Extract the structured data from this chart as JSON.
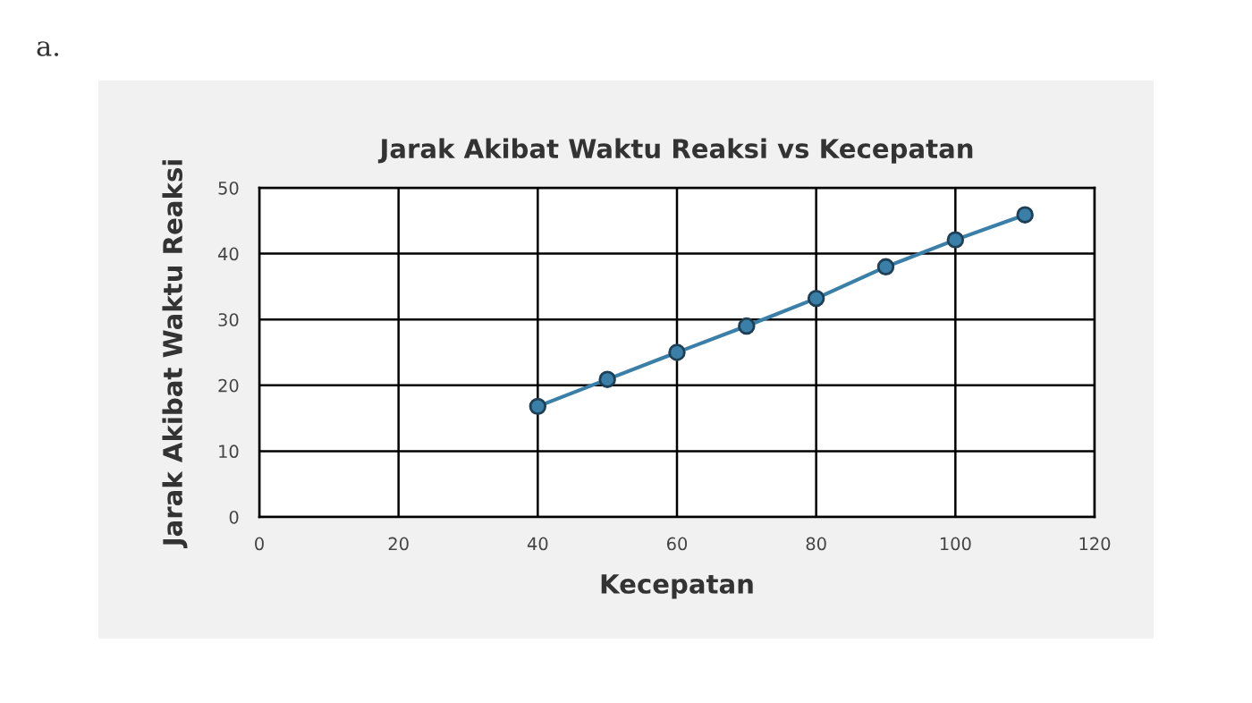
{
  "chart_data": {
    "type": "line",
    "title": "Jarak Akibat Waktu Reaksi vs Kecepatan",
    "xlabel": "Kecepatan",
    "ylabel": "Jarak Akibat Waktu Reaksi",
    "annotations": [
      "a."
    ],
    "x": [
      40,
      50,
      60,
      70,
      80,
      90,
      100,
      110
    ],
    "series": [
      {
        "color": "#3a7fa8",
        "values": [
          16.8,
          20.9,
          25,
          29,
          33.2,
          38,
          42.1,
          45.9
        ]
      }
    ],
    "xlim": [
      0,
      120
    ],
    "xticks": [
      0,
      20,
      40,
      60,
      80,
      100,
      120
    ],
    "ylim": [
      0,
      50
    ],
    "yticks": [
      0,
      10,
      20,
      30,
      40,
      50
    ],
    "grid": true,
    "marker": "circle",
    "line_style": "solid",
    "legend": false
  }
}
